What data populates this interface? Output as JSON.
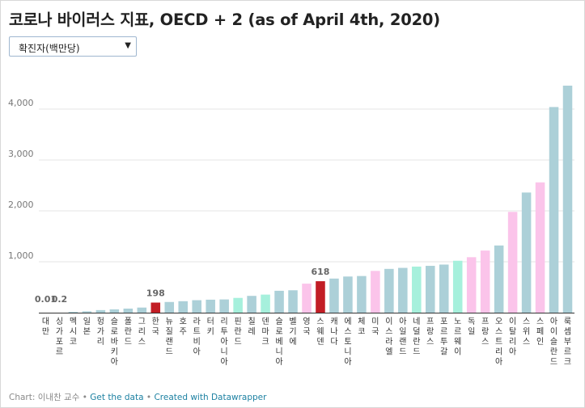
{
  "title": "코로나 바이러스 지표, OECD + 2 (as of April 4th, 2020)",
  "dropdown": {
    "selected": "확진자(백만당)",
    "arrow": "▼"
  },
  "chart_data": {
    "type": "bar",
    "ylim": [
      0,
      4500
    ],
    "yticks": [
      1000,
      2000,
      3000,
      4000
    ],
    "ytick_labels": [
      "1,000",
      "2,000",
      "3,000",
      "4,000"
    ],
    "grid": true,
    "categories": [
      "대만",
      "싱가포르",
      "멕시코",
      "일본",
      "헝가리",
      "슬로바키아",
      "폴란드",
      "그리스",
      "한국",
      "뉴질랜드",
      "호주",
      "라트비아",
      "터키",
      "리투아니아",
      "핀란드",
      "칠레",
      "덴마크",
      "슬로베니아",
      "벨기에",
      "영국",
      "스웨덴",
      "캐나다",
      "에스토니아",
      "체코",
      "미국",
      "이스라엘",
      "아일랜드",
      "네덜란드",
      "프랑스",
      "포르투갈",
      "노르웨이",
      "독일",
      "프랑스",
      "오스트리아",
      "이탈리아",
      "스위스",
      "스페인",
      "아이슬란드",
      "룩셈부르크"
    ],
    "values": [
      0.01,
      0.2,
      16,
      26,
      50,
      65,
      80,
      100,
      198,
      210,
      225,
      245,
      255,
      260,
      290,
      330,
      355,
      430,
      440,
      570,
      618,
      670,
      710,
      720,
      820,
      860,
      880,
      905,
      920,
      945,
      1020,
      1090,
      1220,
      1320,
      1980,
      2360,
      2560,
      4040,
      4460
    ],
    "colors": [
      "#acd0d8",
      "#acd0d8",
      "#acd0d8",
      "#acd0d8",
      "#acd0d8",
      "#acd0d8",
      "#acd0d8",
      "#acd0d8",
      "#c21d25",
      "#acd0d8",
      "#acd0d8",
      "#acd0d8",
      "#acd0d8",
      "#acd0d8",
      "#a6f0dc",
      "#acd0d8",
      "#a6f0dc",
      "#acd0d8",
      "#acd0d8",
      "#fbc4ea",
      "#c21d25",
      "#acd0d8",
      "#acd0d8",
      "#acd0d8",
      "#fbc4ea",
      "#acd0d8",
      "#acd0d8",
      "#a6f0dc",
      "#acd0d8",
      "#acd0d8",
      "#a6f0dc",
      "#fbc4ea",
      "#fbc4ea",
      "#acd0d8",
      "#fbc4ea",
      "#acd0d8",
      "#fbc4ea",
      "#acd0d8",
      "#acd0d8"
    ],
    "value_labels": [
      {
        "index": 0,
        "text": "0.01"
      },
      {
        "index": 1,
        "text": "0.2"
      },
      {
        "index": 8,
        "text": "198"
      },
      {
        "index": 20,
        "text": "618"
      }
    ]
  },
  "footer": {
    "prefix": "Chart: 이내찬 교수",
    "sep": "•",
    "get_data": "Get the data",
    "created": "Created with Datawrapper"
  }
}
